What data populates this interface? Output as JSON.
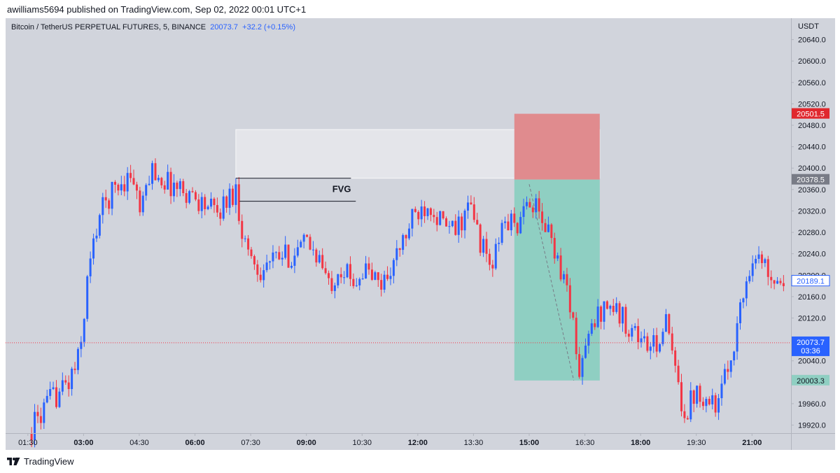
{
  "header": {
    "published": "awilliams5694 published on TradingView.com, Sep 02, 2022 00:01 UTC+1"
  },
  "legend": {
    "symbol": "Bitcoin / TetherUS PERPETUAL FUTURES, 5, BINANCE",
    "last": "20073.7",
    "change": "+32.2 (+0.15%)"
  },
  "footer": {
    "brand": "TradingView",
    "logo_icon": "tradingview-logo-icon"
  },
  "colors": {
    "up": "#2962ff",
    "down": "#f23645",
    "background": "#d1d4dc",
    "stop_zone": "#e08b8e",
    "target_zone": "#8fcfc2",
    "fvg_zone": "#e4e5ea"
  },
  "chart_data": {
    "type": "candlestick",
    "ylabel": "USDT",
    "ylim": [
      19905,
      20680
    ],
    "y_ticks": [
      "20640.0",
      "20600.0",
      "20560.0",
      "20520.0",
      "20480.0",
      "20440.0",
      "20400.0",
      "20360.0",
      "20320.0",
      "20280.0",
      "20240.0",
      "20200.0",
      "20160.0",
      "20120.0",
      "20080.0",
      "20040.0",
      "20000.0",
      "19960.0",
      "19920.0"
    ],
    "x_ticks": [
      {
        "label": "01:30",
        "bold": false,
        "x": 1.5
      },
      {
        "label": "03:00",
        "bold": true,
        "x": 3.0
      },
      {
        "label": "04:30",
        "bold": false,
        "x": 4.5
      },
      {
        "label": "06:00",
        "bold": true,
        "x": 6.0
      },
      {
        "label": "07:30",
        "bold": false,
        "x": 7.5
      },
      {
        "label": "09:00",
        "bold": true,
        "x": 9.0
      },
      {
        "label": "10:30",
        "bold": false,
        "x": 10.5
      },
      {
        "label": "12:00",
        "bold": true,
        "x": 12.0
      },
      {
        "label": "13:30",
        "bold": false,
        "x": 13.5
      },
      {
        "label": "15:00",
        "bold": true,
        "x": 15.0
      },
      {
        "label": "16:30",
        "bold": false,
        "x": 16.5
      },
      {
        "label": "18:00",
        "bold": true,
        "x": 18.0
      },
      {
        "label": "19:30",
        "bold": false,
        "x": 19.5
      },
      {
        "label": "21:00",
        "bold": true,
        "x": 21.0
      }
    ],
    "x_range": [
      0.9,
      22.05
    ],
    "price_path": [
      [
        1.6,
        19915
      ],
      [
        2.1,
        19965
      ],
      [
        2.6,
        20000
      ],
      [
        2.9,
        20050
      ],
      [
        3.1,
        20190
      ],
      [
        3.4,
        20310
      ],
      [
        3.8,
        20360
      ],
      [
        4.3,
        20390
      ],
      [
        4.55,
        20310
      ],
      [
        4.8,
        20400
      ],
      [
        5.3,
        20370
      ],
      [
        5.7,
        20360
      ],
      [
        6.2,
        20335
      ],
      [
        6.6,
        20315
      ],
      [
        6.9,
        20345
      ],
      [
        7.1,
        20360
      ],
      [
        7.2,
        20310
      ],
      [
        7.35,
        20260
      ],
      [
        7.7,
        20210
      ],
      [
        8.2,
        20230
      ],
      [
        8.7,
        20240
      ],
      [
        9.0,
        20260
      ],
      [
        9.3,
        20240
      ],
      [
        9.6,
        20180
      ],
      [
        9.9,
        20220
      ],
      [
        10.2,
        20190
      ],
      [
        10.6,
        20210
      ],
      [
        11.0,
        20180
      ],
      [
        11.4,
        20230
      ],
      [
        11.9,
        20310
      ],
      [
        12.3,
        20340
      ],
      [
        12.7,
        20290
      ],
      [
        13.0,
        20280
      ],
      [
        13.4,
        20330
      ],
      [
        13.7,
        20260
      ],
      [
        14.0,
        20210
      ],
      [
        14.3,
        20300
      ],
      [
        14.8,
        20295
      ],
      [
        15.0,
        20350
      ],
      [
        15.25,
        20310
      ],
      [
        15.6,
        20270
      ],
      [
        15.9,
        20200
      ],
      [
        16.15,
        20140
      ],
      [
        16.3,
        20010
      ],
      [
        16.5,
        20060
      ],
      [
        16.8,
        20120
      ],
      [
        17.1,
        20150
      ],
      [
        17.5,
        20120
      ],
      [
        17.9,
        20090
      ],
      [
        18.3,
        20060
      ],
      [
        18.7,
        20110
      ],
      [
        18.95,
        20010
      ],
      [
        19.2,
        19940
      ],
      [
        19.5,
        19990
      ],
      [
        19.8,
        19970
      ],
      [
        20.1,
        19960
      ],
      [
        20.4,
        20040
      ],
      [
        20.7,
        20140
      ],
      [
        21.0,
        20240
      ],
      [
        21.3,
        20220
      ],
      [
        21.6,
        20200
      ],
      [
        21.9,
        20190
      ]
    ],
    "candle_width_minutes": 5,
    "lines": [
      {
        "name": "fvg-top-line",
        "x1": 7.1,
        "x2": 10.2,
        "y": 20381
      },
      {
        "name": "fvg-bottom-line",
        "x1": 7.2,
        "x2": 10.33,
        "y": 20338
      }
    ],
    "zones": [
      {
        "name": "fvg-zone",
        "x1": 7.1,
        "x2": 16.9,
        "y_top": 20472,
        "y_bottom": 20381
      },
      {
        "name": "stop-zone",
        "x1": 14.6,
        "x2": 16.9,
        "y_top": 20501.5,
        "y_bottom": 20378.5
      },
      {
        "name": "target-zone",
        "x1": 14.6,
        "x2": 16.9,
        "y_top": 20378.5,
        "y_bottom": 20003.3
      }
    ],
    "annotations": [
      {
        "text": "FVG",
        "x": 9.95,
        "y": 20355
      }
    ],
    "projection": {
      "x1": 15.0,
      "y1": 20370,
      "x2": 16.2,
      "y2": 20003.3
    },
    "price_labels": [
      {
        "text": "20501.5",
        "value": 20501.5,
        "color": "#e0282e"
      },
      {
        "text": "20378.5",
        "value": 20378.5,
        "color": "#787b86"
      },
      {
        "text": "20189.1",
        "value": 20189.1,
        "color": "#ffffff",
        "text_color": "#2962ff",
        "border": "#2962ff"
      },
      {
        "text": "20003.3",
        "value": 20003.3,
        "color": "#8fcfc2",
        "text_color": "#131722"
      }
    ],
    "last_price": {
      "text": "20073.7",
      "countdown": "03:36",
      "value": 20073.7,
      "color": "#2962ff"
    }
  }
}
